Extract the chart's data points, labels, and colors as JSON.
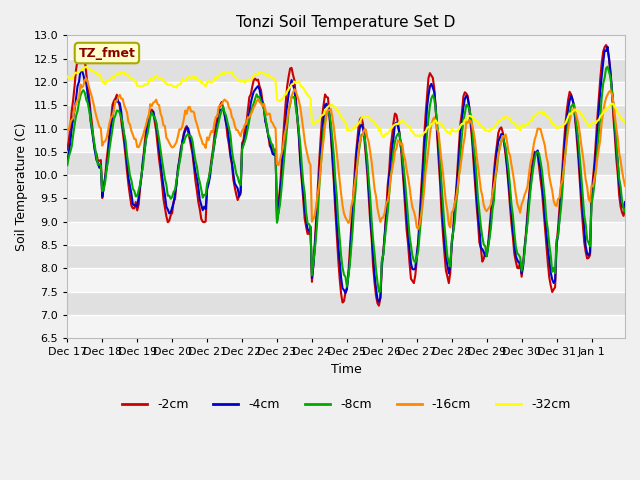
{
  "title": "Tonzi Soil Temperature Set D",
  "ylabel": "Soil Temperature (C)",
  "xlabel": "Time",
  "ylim": [
    6.5,
    13.0
  ],
  "yticks": [
    6.5,
    7.0,
    7.5,
    8.0,
    8.5,
    9.0,
    9.5,
    10.0,
    10.5,
    11.0,
    11.5,
    12.0,
    12.5,
    13.0
  ],
  "legend_label": "TZ_fmet",
  "series": {
    "-2cm": {
      "color": "#cc0000",
      "lw": 1.5
    },
    "-4cm": {
      "color": "#0000cc",
      "lw": 1.5
    },
    "-8cm": {
      "color": "#00aa00",
      "lw": 1.5
    },
    "-16cm": {
      "color": "#ff8800",
      "lw": 1.5
    },
    "-32cm": {
      "color": "#ffff00",
      "lw": 1.5
    }
  },
  "n_days": 16,
  "xtick_labels": [
    "Dec 17",
    "Dec 18",
    "Dec 19",
    "Dec 20",
    "Dec 21",
    "Dec 22",
    "Dec 23",
    "Dec 24",
    "Dec 25",
    "Dec 26",
    "Dec 27",
    "Dec 28",
    "Dec 29",
    "Dec 30",
    "Dec 31",
    "Jan 1"
  ]
}
